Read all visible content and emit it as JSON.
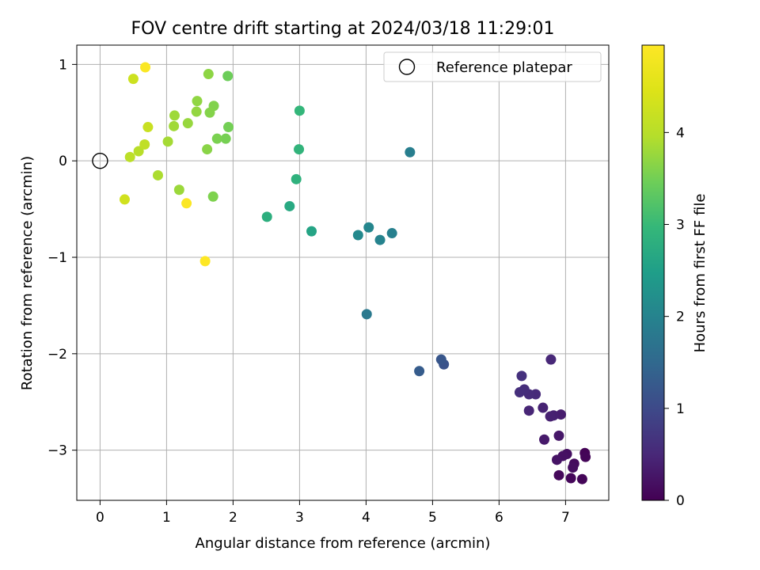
{
  "chart_data": {
    "type": "scatter",
    "title": "FOV centre drift starting at 2024/03/18 11:29:01",
    "xlabel": "Angular distance from reference (arcmin)",
    "ylabel": "Rotation from reference (arcmin)",
    "xlim": [
      -0.35,
      7.65
    ],
    "ylim": [
      -3.52,
      1.2
    ],
    "xticks": [
      0,
      1,
      2,
      3,
      4,
      5,
      6,
      7
    ],
    "yticks": [
      -3,
      -2,
      -1,
      0,
      1
    ],
    "grid": true,
    "legend": {
      "placement": "top-right",
      "entries": [
        "Reference platepar"
      ]
    },
    "reference_point": {
      "x": 0,
      "y": 0,
      "label": "Reference platepar"
    },
    "colorbar": {
      "label": "Hours from first FF file",
      "range": [
        0,
        4.95
      ],
      "ticks": [
        0,
        1,
        2,
        3,
        4
      ],
      "colormap": "viridis"
    },
    "points": [
      {
        "x": 7.29,
        "y": -3.03,
        "h": 0.03
      },
      {
        "x": 7.3,
        "y": -3.07,
        "h": 0.05
      },
      {
        "x": 7.25,
        "y": -3.3,
        "h": 0.06
      },
      {
        "x": 7.08,
        "y": -3.29,
        "h": 0.08
      },
      {
        "x": 6.9,
        "y": -3.26,
        "h": 0.1
      },
      {
        "x": 7.13,
        "y": -3.14,
        "h": 0.12
      },
      {
        "x": 7.11,
        "y": -3.18,
        "h": 0.15
      },
      {
        "x": 7.02,
        "y": -3.04,
        "h": 0.18
      },
      {
        "x": 6.96,
        "y": -3.06,
        "h": 0.2
      },
      {
        "x": 6.87,
        "y": -3.1,
        "h": 0.23
      },
      {
        "x": 6.9,
        "y": -2.85,
        "h": 0.28
      },
      {
        "x": 6.68,
        "y": -2.89,
        "h": 0.32
      },
      {
        "x": 6.93,
        "y": -2.63,
        "h": 0.35
      },
      {
        "x": 6.82,
        "y": -2.64,
        "h": 0.38
      },
      {
        "x": 6.77,
        "y": -2.65,
        "h": 0.4
      },
      {
        "x": 6.66,
        "y": -2.56,
        "h": 0.43
      },
      {
        "x": 6.45,
        "y": -2.59,
        "h": 0.47
      },
      {
        "x": 6.78,
        "y": -2.06,
        "h": 0.5
      },
      {
        "x": 6.55,
        "y": -2.42,
        "h": 0.52
      },
      {
        "x": 6.45,
        "y": -2.42,
        "h": 0.55
      },
      {
        "x": 6.38,
        "y": -2.37,
        "h": 0.58
      },
      {
        "x": 6.31,
        "y": -2.4,
        "h": 0.6
      },
      {
        "x": 6.34,
        "y": -2.23,
        "h": 0.63
      },
      {
        "x": 5.17,
        "y": -2.11,
        "h": 1.15
      },
      {
        "x": 5.13,
        "y": -2.06,
        "h": 1.2
      },
      {
        "x": 4.8,
        "y": -2.18,
        "h": 1.3
      },
      {
        "x": 4.01,
        "y": -1.59,
        "h": 1.8
      },
      {
        "x": 4.66,
        "y": 0.09,
        "h": 1.9
      },
      {
        "x": 4.39,
        "y": -0.75,
        "h": 1.95
      },
      {
        "x": 4.21,
        "y": -0.82,
        "h": 2.0
      },
      {
        "x": 4.04,
        "y": -0.69,
        "h": 2.05
      },
      {
        "x": 3.88,
        "y": -0.77,
        "h": 2.1
      },
      {
        "x": 3.18,
        "y": -0.73,
        "h": 2.6
      },
      {
        "x": 2.85,
        "y": -0.47,
        "h": 2.7
      },
      {
        "x": 2.51,
        "y": -0.58,
        "h": 2.8
      },
      {
        "x": 2.95,
        "y": -0.19,
        "h": 2.85
      },
      {
        "x": 2.99,
        "y": 0.12,
        "h": 2.9
      },
      {
        "x": 3.0,
        "y": 0.52,
        "h": 2.95
      },
      {
        "x": 1.92,
        "y": 0.88,
        "h": 3.45
      },
      {
        "x": 1.93,
        "y": 0.35,
        "h": 3.5
      },
      {
        "x": 1.89,
        "y": 0.23,
        "h": 3.52
      },
      {
        "x": 1.76,
        "y": 0.23,
        "h": 3.55
      },
      {
        "x": 1.7,
        "y": -0.37,
        "h": 3.58
      },
      {
        "x": 1.71,
        "y": 0.57,
        "h": 3.6
      },
      {
        "x": 1.65,
        "y": 0.5,
        "h": 3.62
      },
      {
        "x": 1.61,
        "y": 0.12,
        "h": 3.65
      },
      {
        "x": 1.63,
        "y": 0.9,
        "h": 3.68
      },
      {
        "x": 1.46,
        "y": 0.62,
        "h": 3.7
      },
      {
        "x": 1.45,
        "y": 0.51,
        "h": 3.72
      },
      {
        "x": 1.32,
        "y": 0.39,
        "h": 3.75
      },
      {
        "x": 1.19,
        "y": -0.3,
        "h": 3.78
      },
      {
        "x": 1.12,
        "y": 0.47,
        "h": 3.8
      },
      {
        "x": 1.11,
        "y": 0.36,
        "h": 3.82
      },
      {
        "x": 1.02,
        "y": 0.2,
        "h": 3.85
      },
      {
        "x": 0.87,
        "y": -0.15,
        "h": 3.9
      },
      {
        "x": 0.58,
        "y": 0.1,
        "h": 4.0
      },
      {
        "x": 0.45,
        "y": 0.04,
        "h": 4.05
      },
      {
        "x": 0.67,
        "y": 0.17,
        "h": 4.1
      },
      {
        "x": 0.72,
        "y": 0.35,
        "h": 4.2
      },
      {
        "x": 0.5,
        "y": 0.85,
        "h": 4.25
      },
      {
        "x": 0.37,
        "y": -0.4,
        "h": 4.3
      },
      {
        "x": 0.68,
        "y": 0.97,
        "h": 4.9
      },
      {
        "x": 1.3,
        "y": -0.44,
        "h": 4.92
      },
      {
        "x": 1.58,
        "y": -1.04,
        "h": 4.95
      }
    ]
  }
}
